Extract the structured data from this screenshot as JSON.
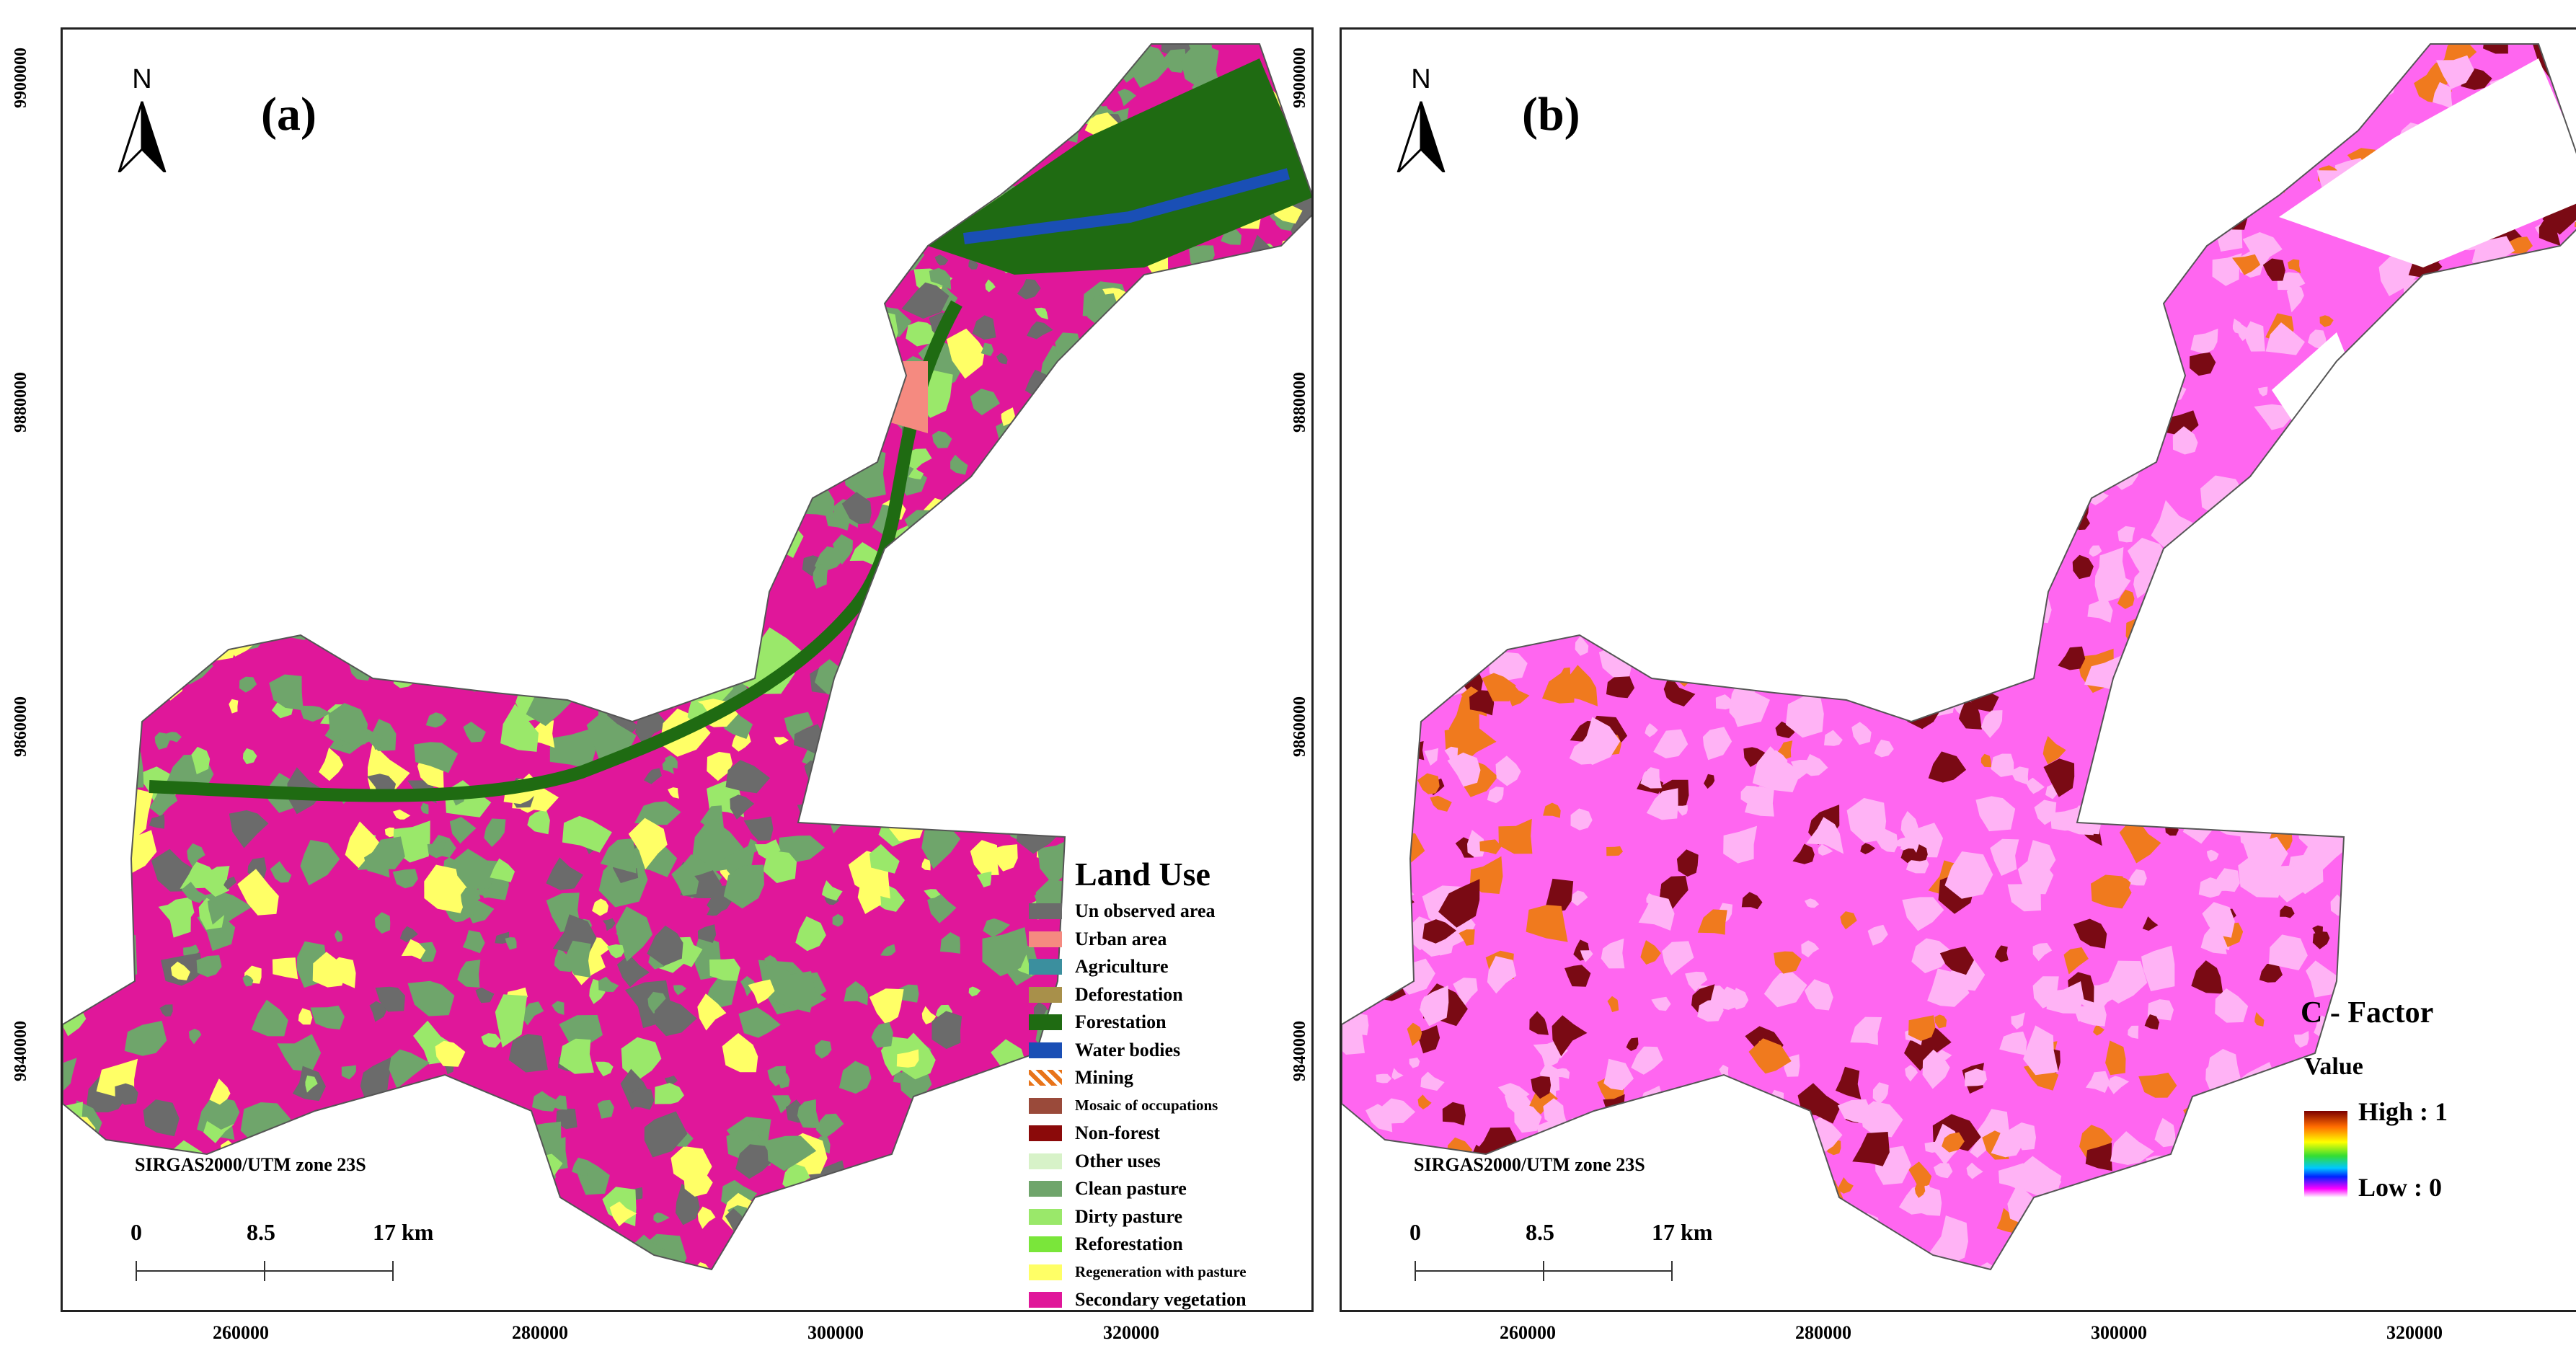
{
  "panels": {
    "a": {
      "label": "(a)",
      "north_label": "N",
      "crs": "SIRGAS2000/UTM zone 23S",
      "scale": [
        "0",
        "8.5",
        "17 km"
      ],
      "legend": {
        "title": "Land Use",
        "items": [
          {
            "label": "Un observed area",
            "color": "#6b6b6b"
          },
          {
            "label": "Urban area",
            "color": "#f58a80"
          },
          {
            "label": "Agriculture",
            "color": "#3b8f9e"
          },
          {
            "label": "Deforestation",
            "color": "#a8904a"
          },
          {
            "label": "Forestation",
            "color": "#1f6b12"
          },
          {
            "label": "Water bodies",
            "color": "#1a4fb5"
          },
          {
            "label": "Mining",
            "color": "hatch"
          },
          {
            "label": "Mosaic of occupations",
            "color": "#9a4a3a"
          },
          {
            "label": "Non-forest",
            "color": "#8b0a0a"
          },
          {
            "label": "Other uses",
            "color": "#d7f2c8"
          },
          {
            "label": "Clean pasture",
            "color": "#6fa56b"
          },
          {
            "label": "Dirty pasture",
            "color": "#9ae86a"
          },
          {
            "label": "Reforestation",
            "color": "#7ae63a"
          },
          {
            "label": "Regeneration with pasture",
            "color": "#ffff66"
          },
          {
            "label": "Secondary vegetation",
            "color": "#e0179a"
          }
        ]
      }
    },
    "b": {
      "label": "(b)",
      "north_label": "N",
      "crs": "SIRGAS2000/UTM zone 23S",
      "scale": [
        "0",
        "8.5",
        "17 km"
      ],
      "legend": {
        "title": "C - Factor",
        "subtitle": "Value",
        "high": "High : 1",
        "low": "Low : 0"
      }
    }
  },
  "axes": {
    "x_ticks": [
      "260000",
      "280000",
      "300000",
      "320000"
    ],
    "y_ticks": [
      "9900000",
      "9880000",
      "9860000",
      "9840000"
    ]
  },
  "colors": {
    "secondary_vegetation": "#e0179a",
    "clean_pasture": "#6fa56b",
    "regeneration": "#ffff66",
    "forestation": "#1f6b12",
    "water": "#1a4fb5",
    "urban": "#f58a80",
    "cf_pink": "#ff66f0",
    "cf_light": "#ffb3f5",
    "cf_orange": "#f07a1e",
    "cf_dark": "#7a0a14"
  }
}
